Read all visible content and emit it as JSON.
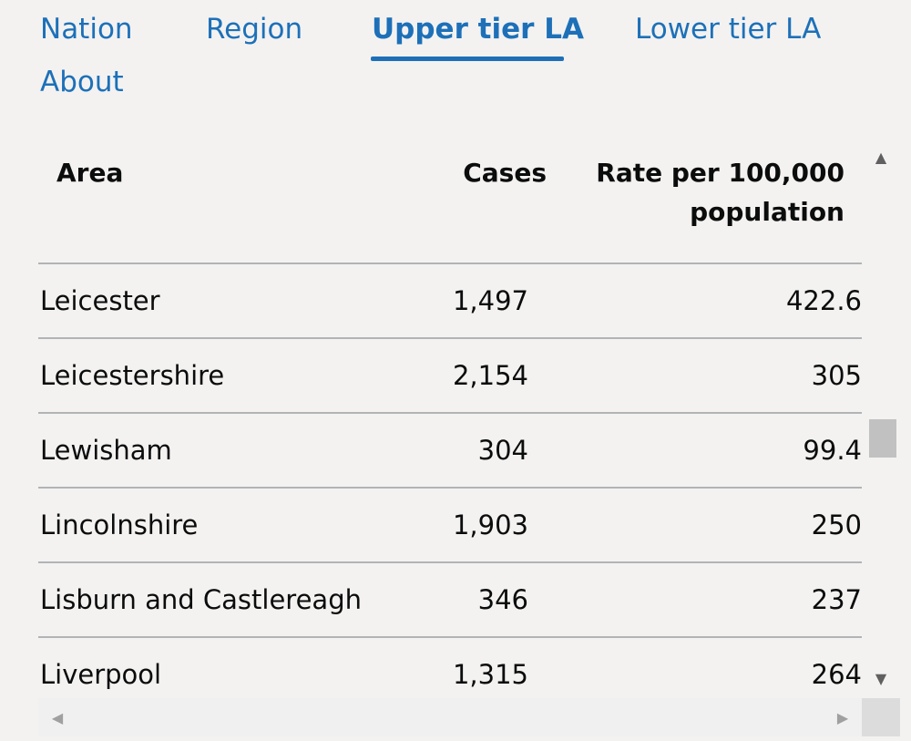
{
  "tabs": [
    {
      "label": "Nation",
      "active": false
    },
    {
      "label": "Region",
      "active": false
    },
    {
      "label": "Upper tier LA",
      "active": true
    },
    {
      "label": "Lower tier LA",
      "active": false
    },
    {
      "label": "About",
      "active": false
    }
  ],
  "table": {
    "headers": {
      "area": "Area",
      "cases": "Cases",
      "rate_line1": "Rate per 100,000",
      "rate_line2": "population"
    },
    "rows": [
      {
        "area": "Leicester",
        "cases": "1,497",
        "rate": "422.6"
      },
      {
        "area": "Leicestershire",
        "cases": "2,154",
        "rate": "305"
      },
      {
        "area": "Lewisham",
        "cases": "304",
        "rate": "99.4"
      },
      {
        "area": "Lincolnshire",
        "cases": "1,903",
        "rate": "250"
      },
      {
        "area": "Lisburn and Castlereagh",
        "cases": "346",
        "rate": "237"
      },
      {
        "area": "Liverpool",
        "cases": "1,315",
        "rate": "264"
      }
    ]
  },
  "scrollbar": {
    "vertical_position": 0.55
  },
  "colors": {
    "link": "#1d70b8",
    "text": "#0b0c0c",
    "background": "#f3f2f1",
    "border": "#b1b4b6"
  },
  "icons": {
    "scroll_up": "triangle-up-icon",
    "scroll_down": "triangle-down-icon",
    "scroll_left": "triangle-left-icon",
    "scroll_right": "triangle-right-icon"
  }
}
